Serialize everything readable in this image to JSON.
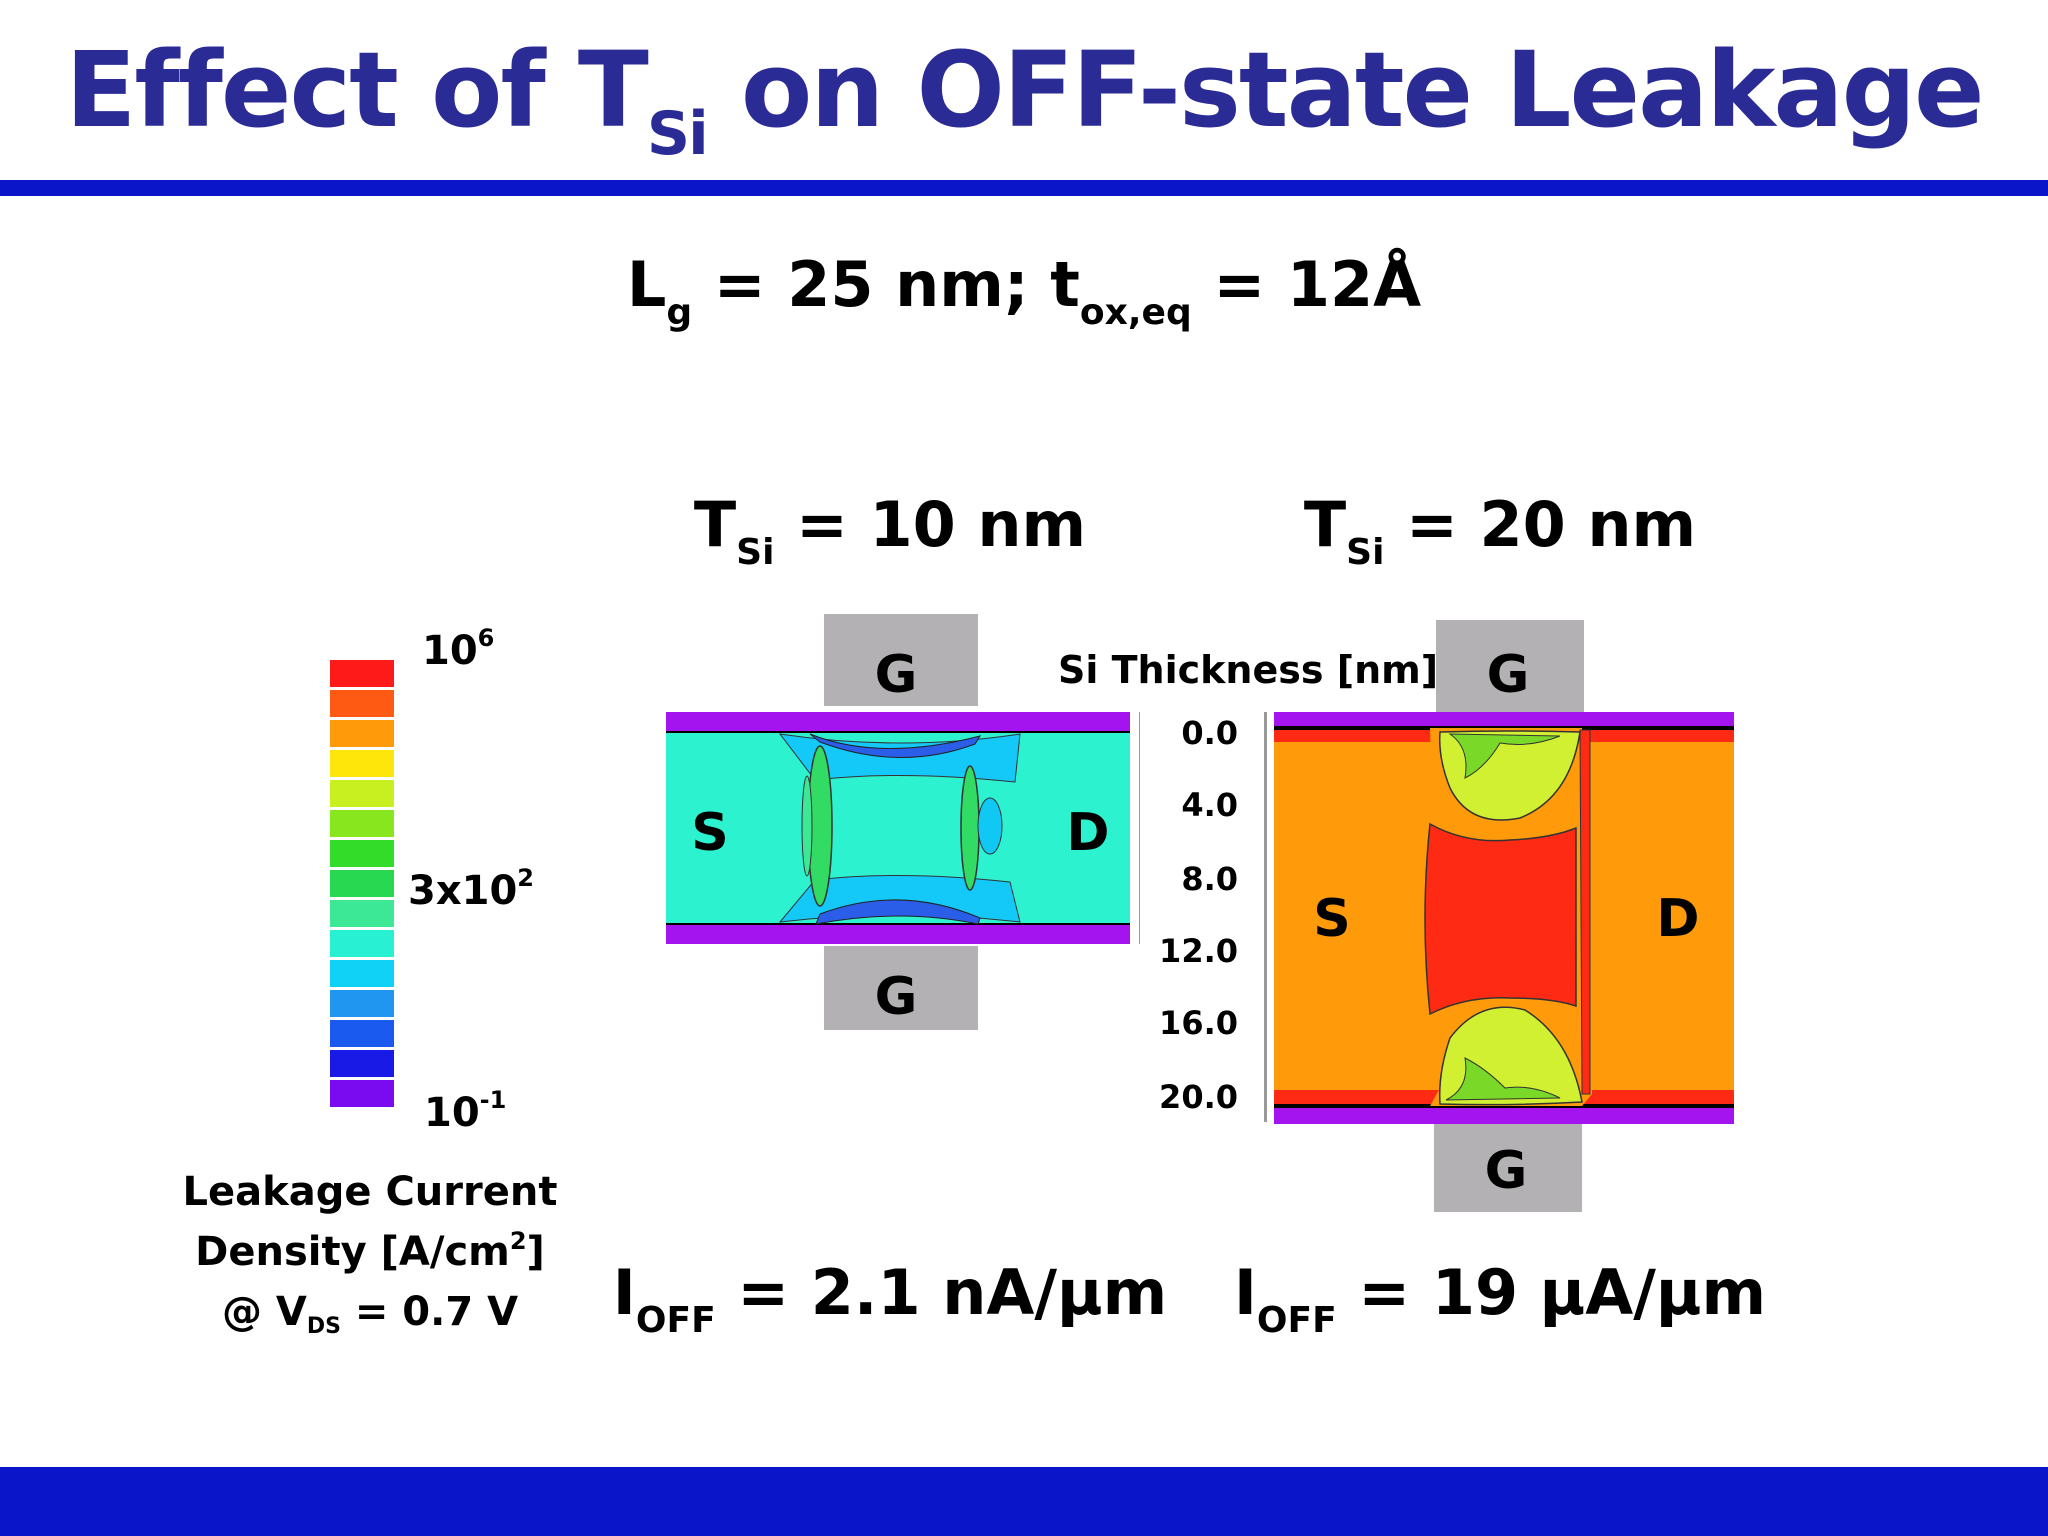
{
  "title": {
    "main": "Effect of T",
    "sub": "Si",
    "rest": " on OFF-state Leakage"
  },
  "conditions": {
    "lg": "L",
    "lg_sub": "g",
    "lg_rest": " = 25 nm; t",
    "tox_sub": "ox,eq",
    "tox_rest": " = 12Å"
  },
  "legend": {
    "top_label": "10",
    "top_exp": "6",
    "mid_label": "3x10",
    "mid_exp": "2",
    "bottom_label": "10",
    "bottom_exp": "-1",
    "caption_line1": "Leakage Current",
    "caption_line2": "Density [A/cm",
    "caption_line2_exp": "2",
    "caption_line2_end": "]",
    "caption_line3": "@ V",
    "caption_line3_sub": "DS",
    "caption_line3_end": " = 0.7 V",
    "colors": [
      "#ff1a1a",
      "#ff5a14",
      "#ff9a0a",
      "#ffe60a",
      "#c8f020",
      "#88e61e",
      "#32dc28",
      "#28d850",
      "#3ce896",
      "#28f0d2",
      "#10d2f6",
      "#2096f0",
      "#1a5aee",
      "#1a1ae6",
      "#7a0af0"
    ]
  },
  "devices": [
    {
      "tsi_label": "T",
      "tsi_sub": "Si",
      "tsi_value": " = 10 nm",
      "gate_top": "G",
      "gate_bottom": "G",
      "source": "S",
      "drain": "D",
      "ioff_label": "I",
      "ioff_sub": "OFF",
      "ioff_value": " = 2.1 nA/μm"
    },
    {
      "tsi_label": "T",
      "tsi_sub": "Si",
      "tsi_value": " = 20 nm",
      "gate_top": "G",
      "gate_bottom": "G",
      "source": "S",
      "drain": "D",
      "ioff_label": "I",
      "ioff_sub": "OFF",
      "ioff_value": " = 19 μA/μm"
    }
  ],
  "thickness_axis": {
    "title": "Si Thickness [nm]",
    "ticks": [
      "0.0",
      "4.0",
      "8.0",
      "12.0",
      "16.0",
      "20.0"
    ]
  }
}
